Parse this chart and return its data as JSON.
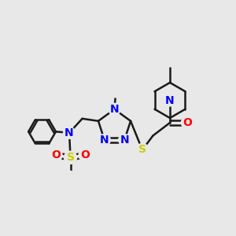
{
  "bg_color": "#e8e8e8",
  "atom_colors": {
    "N": "#0000ff",
    "O": "#ff0000",
    "S": "#cccc00"
  },
  "bond_color": "#1a1a1a",
  "bond_width": 1.8,
  "font_size_atom": 10,
  "xlim": [
    0,
    10
  ],
  "ylim": [
    0,
    10
  ]
}
